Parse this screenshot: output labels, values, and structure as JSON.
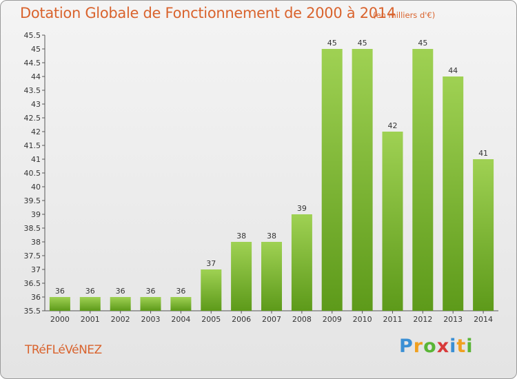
{
  "header": {
    "title": "Dotation Globale de Fonctionnement de 2000 à 2014",
    "subtitle": "(en milliers d'€)"
  },
  "footer": {
    "commune": "TRéFLéVéNEZ",
    "logo_letters": [
      "P",
      "r",
      "o",
      "x",
      "i",
      "t",
      "i"
    ],
    "logo_colors": [
      "#3a8fd4",
      "#f0a020",
      "#5ab536",
      "#d83a3a",
      "#3a8fd4",
      "#f0a020",
      "#5ab536"
    ]
  },
  "chart_data": {
    "type": "bar",
    "categories": [
      "2000",
      "2001",
      "2002",
      "2003",
      "2004",
      "2005",
      "2006",
      "2007",
      "2008",
      "2009",
      "2010",
      "2011",
      "2012",
      "2013",
      "2014"
    ],
    "values": [
      36,
      36,
      36,
      36,
      36,
      37,
      38,
      38,
      39,
      45,
      45,
      42,
      45,
      44,
      41
    ],
    "ylim": [
      35.5,
      45.5
    ],
    "yticks": [
      "35.5",
      "36",
      "36.5",
      "37",
      "37.5",
      "38",
      "38.5",
      "39",
      "39.5",
      "40",
      "40.5",
      "41",
      "41.5",
      "42",
      "42.5",
      "43",
      "43.5",
      "44",
      "44.5",
      "45",
      "45.5"
    ],
    "bar_color_top": "#9fd153",
    "bar_color_bottom": "#5d9a1a",
    "grid": false
  }
}
